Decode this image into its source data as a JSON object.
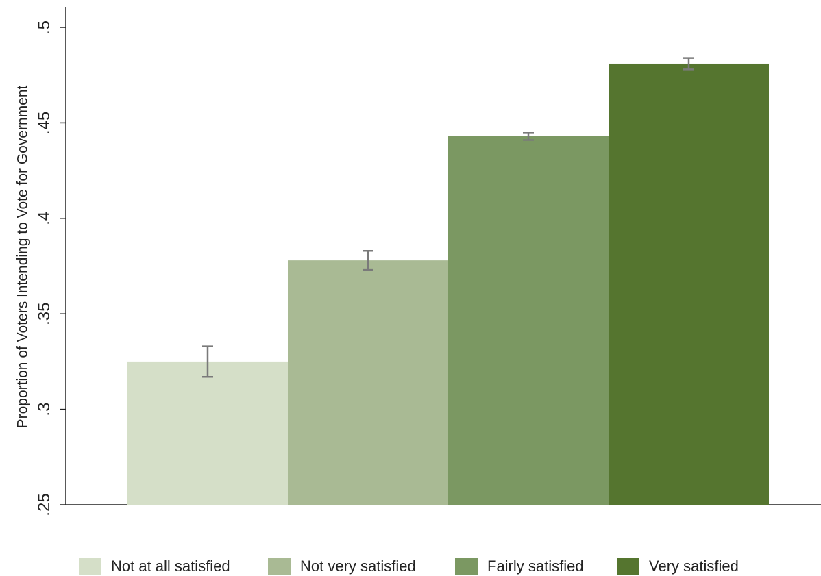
{
  "chart_data": {
    "type": "bar",
    "ylabel": "Proportion of Voters Intending to Vote for Government",
    "ylim": [
      0.25,
      0.5
    ],
    "yticks": [
      {
        "value": 0.25,
        "label": ".25"
      },
      {
        "value": 0.3,
        "label": ".3"
      },
      {
        "value": 0.35,
        "label": ".35"
      },
      {
        "value": 0.4,
        "label": ".4"
      },
      {
        "value": 0.45,
        "label": ".45"
      },
      {
        "value": 0.5,
        "label": ".5"
      }
    ],
    "grid": false,
    "legend": "bottom",
    "series": [
      {
        "name": "Not at all satisfied",
        "color": "#d5dfc8",
        "values": [
          0.325
        ],
        "errors": [
          0.008
        ]
      },
      {
        "name": "Not very satisfied",
        "color": "#a9ba94",
        "values": [
          0.378
        ],
        "errors": [
          0.005
        ]
      },
      {
        "name": "Fairly satisfied",
        "color": "#7b9862",
        "values": [
          0.443
        ],
        "errors": [
          0.002
        ]
      },
      {
        "name": "Very satisfied",
        "color": "#55752f",
        "values": [
          0.481
        ],
        "errors": [
          0.003
        ]
      }
    ]
  }
}
